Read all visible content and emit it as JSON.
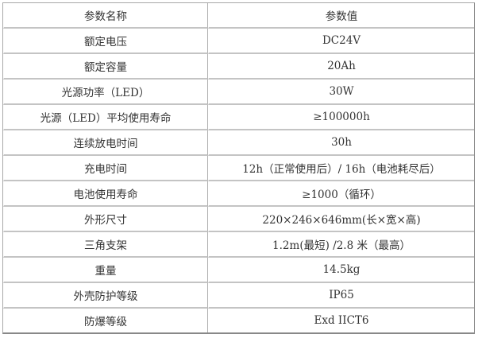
{
  "table": {
    "headers": [
      "参数名称",
      "参数值"
    ],
    "rows": [
      [
        "额定电压",
        "DC24V"
      ],
      [
        "额定容量",
        "20Ah"
      ],
      [
        "光源功率（LED）",
        "30W"
      ],
      [
        "光源（LED）平均使用寿命",
        "≥100000h"
      ],
      [
        "连续放电时间",
        "30h"
      ],
      [
        "充电时间",
        "12h（正常使用后）/  16h（电池耗尽后）"
      ],
      [
        "电池使用寿命",
        "≥1000（循环）"
      ],
      [
        "外形尺寸",
        "220×246×646mm(长×宽×高)"
      ],
      [
        "三角支架",
        "1.2m(最短) /2.8 米（最高）"
      ],
      [
        "重量",
        "14.5kg"
      ],
      [
        "外壳防护等级",
        "IP65"
      ],
      [
        "防爆等级",
        "Exd IICT6"
      ]
    ]
  }
}
